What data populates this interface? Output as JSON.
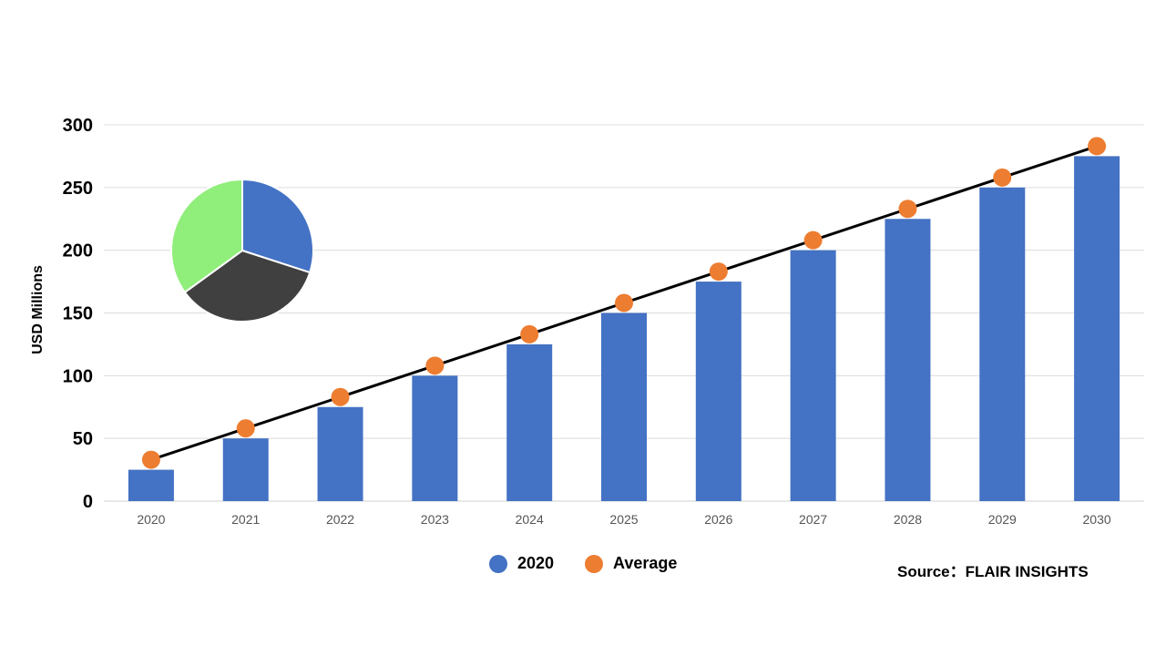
{
  "chart_data": {
    "type": "bar",
    "categories": [
      "2020",
      "2021",
      "2022",
      "2023",
      "2024",
      "2025",
      "2026",
      "2027",
      "2028",
      "2029",
      "2030"
    ],
    "series": [
      {
        "name": "2020",
        "type": "bar",
        "color": "#4472C4",
        "values": [
          25,
          50,
          75,
          100,
          125,
          150,
          175,
          200,
          225,
          250,
          275
        ]
      },
      {
        "name": "Average",
        "type": "line",
        "color": "#ED7D31",
        "line_color": "#000000",
        "values": [
          33,
          58,
          83,
          108,
          133,
          158,
          183,
          208,
          233,
          258,
          283
        ]
      }
    ],
    "ylabel": "USD Millions",
    "ylim": [
      0,
      300
    ],
    "yticks": [
      0,
      50,
      100,
      150,
      200,
      250,
      300
    ],
    "grid": true,
    "legend_position": "bottom",
    "pie": {
      "values": [
        30,
        35,
        35
      ],
      "colors": [
        "#4472C4",
        "#404040",
        "#90EE7A"
      ]
    }
  },
  "legend": [
    {
      "label": "2020",
      "color": "#4472C4"
    },
    {
      "label": "Average",
      "color": "#ED7D31"
    }
  ],
  "source": "Source：FLAIR INSIGHTS"
}
